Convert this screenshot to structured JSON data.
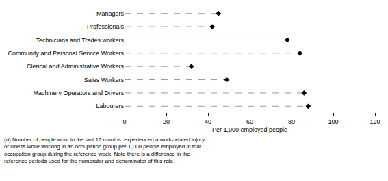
{
  "chart_data": {
    "type": "dot",
    "orientation": "horizontal",
    "categories": [
      "Managers",
      "Professionals",
      "Technicians and Trades workers",
      "Community and Personal Service Workers",
      "Clerical and Administrative Workers",
      "Sales Workers",
      "Machinery Operators and Drivers",
      "Labourers"
    ],
    "values": [
      45,
      42,
      78,
      84,
      32,
      49,
      86,
      88
    ],
    "color": "#000000",
    "marker": "diamond",
    "line_style": "dash",
    "xlabel": "Per 1,000 employed people",
    "xlim": [
      0,
      120
    ],
    "xticks": [
      0,
      20,
      40,
      60,
      80,
      100,
      120
    ],
    "grid": false,
    "footnote": [
      "(a) Number of people who, in the last 12 months, experienced a work-related injury",
      "or illness while working in an occupation group per 1,000 people employed in that",
      "occupation group during the reference week. Note there is a difference in the",
      "reference periods used for the numerator and denominator of this rate."
    ]
  }
}
